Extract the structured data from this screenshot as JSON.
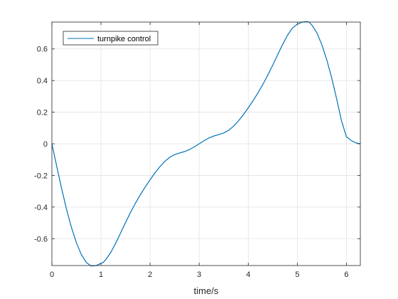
{
  "chart_data": {
    "type": "line",
    "title": "",
    "xlabel": "time/s",
    "ylabel": "",
    "xlim": [
      0,
      6.2832
    ],
    "ylim": [
      -0.7699,
      0.7699
    ],
    "x_ticks": [
      0,
      1,
      2,
      3,
      4,
      5,
      6
    ],
    "x_tick_labels": [
      "0",
      "1",
      "2",
      "3",
      "4",
      "5",
      "6"
    ],
    "y_ticks": [
      -0.6,
      -0.4,
      -0.2,
      0,
      0.2,
      0.4,
      0.6
    ],
    "y_tick_labels": [
      "-0.6",
      "-0.4",
      "-0.2",
      "0",
      "0.2",
      "0.4",
      "0.6"
    ],
    "grid": true,
    "legend_position": "top-left",
    "series": [
      {
        "name": "turnpike control",
        "color": "#0072BD",
        "x": [
          0,
          0.1,
          0.2,
          0.3,
          0.4,
          0.5,
          0.6,
          0.7,
          0.8,
          0.9,
          1.0,
          1.047,
          1.1,
          1.2,
          1.3,
          1.4,
          1.5,
          1.6,
          1.7,
          1.8,
          1.9,
          2.0,
          2.1,
          2.2,
          2.3,
          2.4,
          2.5,
          2.6,
          2.7,
          2.8,
          2.9,
          3.0,
          3.1,
          3.2,
          3.3,
          3.4,
          3.5,
          3.6,
          3.7,
          3.8,
          3.9,
          4.0,
          4.1,
          4.2,
          4.3,
          4.4,
          4.5,
          4.6,
          4.7,
          4.8,
          4.9,
          5.0,
          5.1,
          5.2,
          5.236,
          5.3,
          5.4,
          5.5,
          5.6,
          5.7,
          5.8,
          5.9,
          6.0,
          6.1,
          6.2,
          6.2832
        ],
        "values": [
          0,
          -0.1449,
          -0.2854,
          -0.4162,
          -0.5307,
          -0.6262,
          -0.7004,
          -0.7501,
          -0.7728,
          -0.7701,
          -0.7561,
          -0.7499,
          -0.7319,
          -0.6865,
          -0.6284,
          -0.5639,
          -0.4982,
          -0.4352,
          -0.377,
          -0.3234,
          -0.2738,
          -0.2273,
          -0.1839,
          -0.1446,
          -0.1111,
          -0.0855,
          -0.0685,
          -0.0582,
          -0.0495,
          -0.0367,
          -0.0198,
          0,
          0.0198,
          0.0367,
          0.0495,
          0.0582,
          0.0685,
          0.0855,
          0.1111,
          0.1446,
          0.1839,
          0.2273,
          0.2738,
          0.3234,
          0.377,
          0.4352,
          0.4982,
          0.5639,
          0.6284,
          0.6865,
          0.7319,
          0.7561,
          0.7701,
          0.7728,
          0.7699,
          0.7501,
          0.7004,
          0.6262,
          0.5307,
          0.4162,
          0.2854,
          0.1449,
          0.045,
          0.02,
          0.005,
          0
        ]
      }
    ]
  }
}
